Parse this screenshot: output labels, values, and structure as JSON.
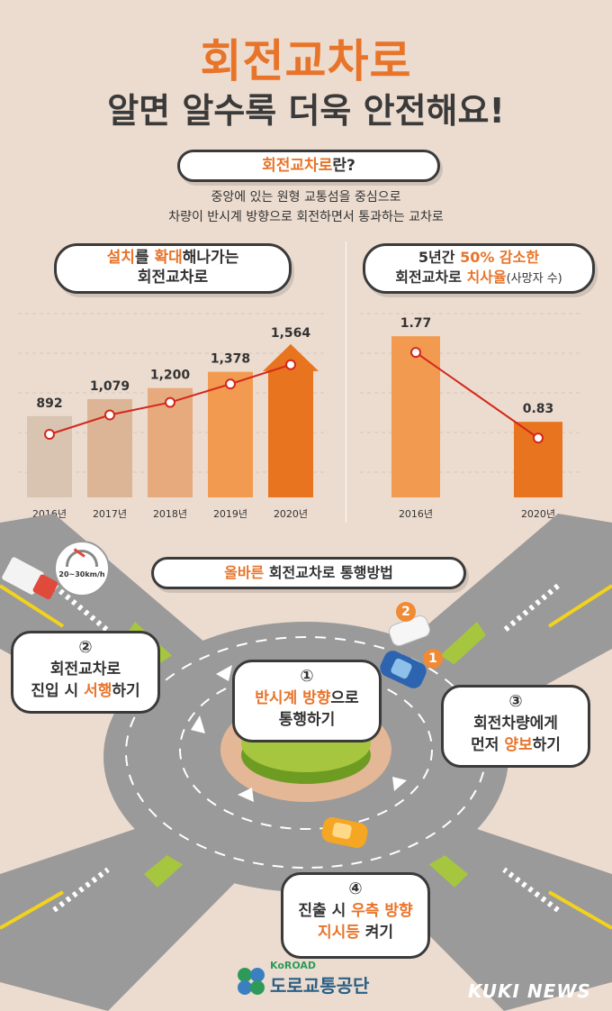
{
  "header": {
    "title": "회전교차로",
    "subtitle": "알면 알수록 더욱 안전해요!"
  },
  "definition": {
    "label_highlight": "회전교차로",
    "label_rest": "란?",
    "line1": "중앙에 있는 원형 교통섬을 중심으로",
    "line2": "차량이 반시계 방향으로 회전하면서 통과하는 교차로"
  },
  "left_panel": {
    "title_highlight_a": "설치",
    "title_mid_a": "를 ",
    "title_highlight_b": "확대",
    "title_rest_a": "해나가는",
    "title_line2": "회전교차로"
  },
  "right_panel": {
    "title_a": "5년간 ",
    "title_highlight": "50% 감소한",
    "title_line2_a": "회전교차로 ",
    "title_line2_highlight": "치사율",
    "title_line2_small": "(사망자 수)"
  },
  "chart_data": [
    {
      "type": "bar",
      "categories": [
        "2016년",
        "2017년",
        "2018년",
        "2019년",
        "2020년"
      ],
      "values": [
        892,
        1079,
        1200,
        1378,
        1564
      ],
      "data_labels": [
        "892",
        "1,079",
        "1,200",
        "1,378",
        "1,564"
      ],
      "colors": [
        "#d9c3b1",
        "#dcb596",
        "#e7aa7d",
        "#f29a4f",
        "#e8741f"
      ]
    },
    {
      "type": "bar",
      "categories": [
        "2016년",
        "2020년"
      ],
      "values": [
        1.77,
        0.83
      ],
      "data_labels": [
        "1.77",
        "0.83"
      ],
      "colors": [
        "#f29a4f",
        "#e8741f"
      ]
    }
  ],
  "method": {
    "label_highlight": "올바른",
    "label_rest": " 회전교차로 통행방법"
  },
  "speed_sign": "20~30km/h",
  "steps": [
    {
      "num": "①",
      "line1_highlight": "반시계 방향",
      "line1_rest": "으로",
      "line2": "통행하기"
    },
    {
      "num": "②",
      "line1": "회전교차로",
      "line2_a": "진입 시 ",
      "line2_highlight": "서행",
      "line2_b": "하기"
    },
    {
      "num": "③",
      "line1": "회전차량에게",
      "line2_a": "먼저 ",
      "line2_highlight": "양보",
      "line2_b": "하기"
    },
    {
      "num": "④",
      "line1_a": "진출 시 ",
      "line1_highlight": "우측 방향",
      "line2_highlight": "지시등",
      "line2_b": " 켜기"
    }
  ],
  "car_markers": [
    "2",
    "1"
  ],
  "footer": {
    "brand_en": "KoROAD",
    "brand_ko": "도로교통공단",
    "watermark": "KUKI NEWS"
  },
  "colors": {
    "accent": "#e8742a",
    "dark": "#3a3a3a",
    "background": "#ecdcd0",
    "road": "#9a9a9a"
  }
}
